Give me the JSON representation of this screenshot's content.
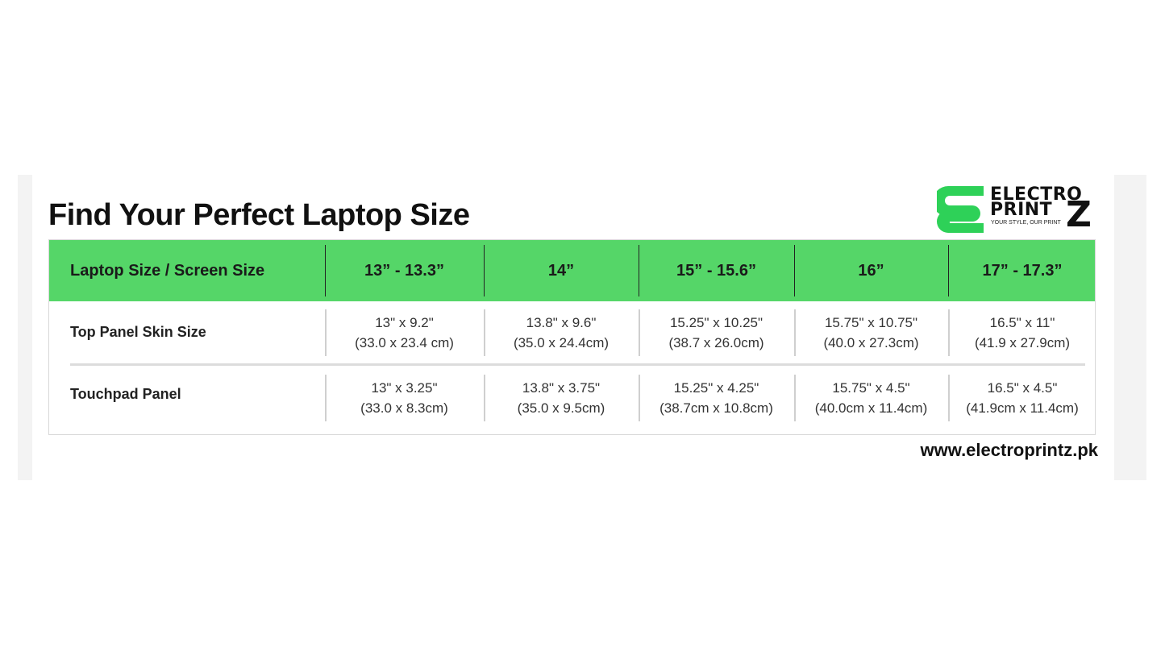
{
  "title": "Find Your Perfect Laptop Size",
  "logo": {
    "line1": "ELECTRO",
    "line2": "PRINT",
    "z": "Z",
    "tagline": "YOUR STYLE, OUR PRINT",
    "brand_color": "#2ed158"
  },
  "table": {
    "header_color": "#55d668",
    "headers": [
      "Laptop Size / Screen Size",
      "13” - 13.3”",
      "14”",
      "15” - 15.6”",
      "16”",
      "17” - 17.3”"
    ],
    "rows": [
      {
        "label": "Top Panel Skin Size",
        "cells": [
          [
            "13\" x 9.2\"",
            "(33.0 x 23.4 cm)"
          ],
          [
            "13.8\" x 9.6\"",
            "(35.0 x 24.4cm)"
          ],
          [
            "15.25\" x 10.25\"",
            "(38.7 x 26.0cm)"
          ],
          [
            "15.75\" x 10.75\"",
            "(40.0 x 27.3cm)"
          ],
          [
            "16.5\" x 11\"",
            "(41.9 x 27.9cm)"
          ]
        ]
      },
      {
        "label": "Touchpad Panel",
        "cells": [
          [
            "13\" x 3.25\"",
            "(33.0 x 8.3cm)"
          ],
          [
            "13.8\" x 3.75\"",
            "(35.0 x 9.5cm)"
          ],
          [
            "15.25\" x 4.25\"",
            "(38.7cm x 10.8cm)"
          ],
          [
            "15.75\" x 4.5\"",
            "(40.0cm x 11.4cm)"
          ],
          [
            "16.5\" x 4.5\"",
            "(41.9cm x 11.4cm)"
          ]
        ]
      }
    ]
  },
  "website": "www.electroprintz.pk"
}
